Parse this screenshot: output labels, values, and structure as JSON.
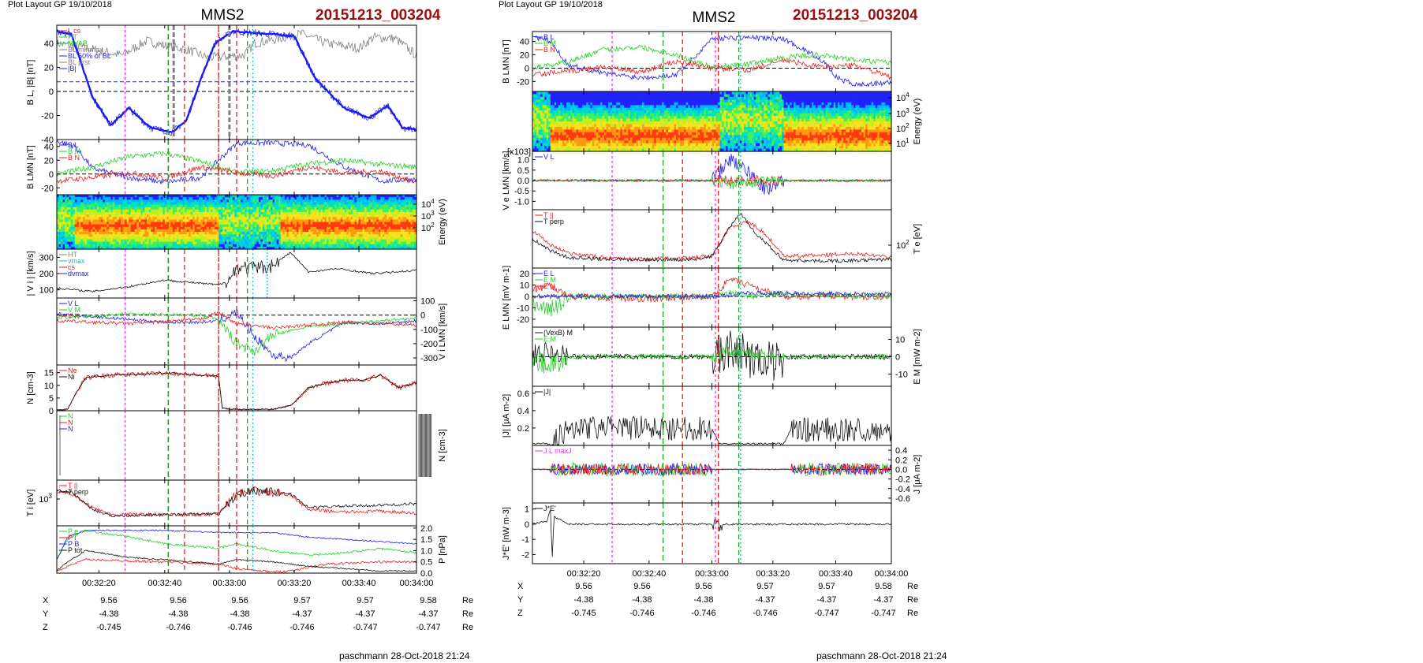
{
  "colors": {
    "blue": "#1d1df0",
    "red": "#ee1c1c",
    "green": "#21d321",
    "black": "#111111",
    "gray": "#808080",
    "magenta": "#ee33ee",
    "dkgreen": "#1aa81a",
    "cyan": "#19b7d8",
    "title_red": "#9b0e0e"
  },
  "left": {
    "header": "Plot Layout GP 19/10/2018",
    "spacecraft": "MMS2",
    "file_id": "20151213_003204",
    "footer": "paschmann 28-Oct-2018 21:24",
    "panels": [
      {
        "id": "bl",
        "ylabel": "B_L, |B| [nT]",
        "ylabel_side": "left",
        "ylim": [
          -40,
          55
        ],
        "ticks": [
          "40",
          "20",
          "0",
          "-20",
          "-40"
        ],
        "legend": [
          {
            "t": "L_cs",
            "c": "red"
          },
          {
            "t": "HT",
            "c": "green"
          },
          {
            "t": "MVAB",
            "c": "green"
          },
          {
            "t": "BL minmax",
            "c": "gray"
          },
          {
            "t": "BL 50% of BL",
            "c": "blue"
          },
          {
            "t": "BL prst",
            "c": "gray"
          },
          {
            "t": "|B|",
            "c": "blue"
          }
        ]
      },
      {
        "id": "blmn",
        "ylabel": "B_LMN [nT]",
        "ylabel_side": "left",
        "ylim": [
          -30,
          50
        ],
        "ticks": [
          "40",
          "20",
          "0",
          "-20"
        ],
        "legend": [
          {
            "t": "B_L",
            "c": "blue"
          },
          {
            "t": "B_M",
            "c": "green"
          },
          {
            "t": "B_N",
            "c": "red"
          }
        ]
      },
      {
        "id": "espec",
        "ylabel": "Energy (eV)",
        "ylabel_side": "right",
        "ticks": [
          "10^4",
          "10^3",
          "10^2"
        ],
        "legend": []
      },
      {
        "id": "vi",
        "ylabel": "| V_i | [km/s]",
        "ylabel_side": "left",
        "ylim": [
          50,
          350
        ],
        "ticks": [
          "300",
          "200",
          "100"
        ],
        "legend": [
          {
            "t": "HT",
            "c": "gray"
          },
          {
            "t": "vmax",
            "c": "cyan"
          },
          {
            "t": "cs",
            "c": "red"
          },
          {
            "t": "dvmax",
            "c": "blue"
          }
        ]
      },
      {
        "id": "vilmn",
        "ylabel": "V_i LMN [km/s]",
        "ylabel_side": "right",
        "ylim": [
          -350,
          120
        ],
        "ticks": [
          "100",
          "0",
          "-100",
          "-200",
          "-300"
        ],
        "legend": [
          {
            "t": "V_L",
            "c": "blue"
          },
          {
            "t": "V_M",
            "c": "green"
          },
          {
            "t": "V_N",
            "c": "red"
          }
        ]
      },
      {
        "id": "n",
        "ylabel": "N [cm^-3]",
        "ylabel_side": "left",
        "ylim": [
          0,
          18
        ],
        "ticks": [
          "15",
          "10",
          "5",
          "0"
        ],
        "legend": [
          {
            "t": "Ne",
            "c": "red"
          },
          {
            "t": "Ni",
            "c": "black"
          }
        ]
      },
      {
        "id": "nmulti",
        "ylabel": "N [cm^-3]",
        "ylabel_side": "right",
        "ticks": [],
        "legend": [
          {
            "t": "N",
            "c": "green"
          },
          {
            "t": "N",
            "c": "red"
          },
          {
            "t": "N",
            "c": "blue"
          }
        ]
      },
      {
        "id": "ti",
        "ylabel": "T_i [eV]",
        "ylabel_side": "left",
        "ticks": [
          "10^3"
        ],
        "legend": [
          {
            "t": "T_||",
            "c": "red"
          },
          {
            "t": "T_perp",
            "c": "black"
          }
        ]
      },
      {
        "id": "p",
        "ylabel": "P [nPa]",
        "ylabel_side": "right",
        "ylim": [
          0,
          2.1
        ],
        "ticks": [
          "2.0",
          "1.5",
          "1.0",
          "0.5",
          "0.0"
        ],
        "legend": [
          {
            "t": "P_e",
            "c": "green"
          },
          {
            "t": "P_i",
            "c": "red"
          },
          {
            "t": "P_B",
            "c": "blue"
          },
          {
            "t": "P_tot",
            "c": "black"
          }
        ]
      }
    ],
    "time_ticks": [
      "00:32:20",
      "00:32:40",
      "00:33:00",
      "00:33:20",
      "00:33:40",
      "00:34:00"
    ],
    "ephemeris": [
      {
        "label": "X",
        "values": [
          "9.56",
          "9.56",
          "9.56",
          "9.57",
          "9.57",
          "9.58"
        ],
        "unit": "Re"
      },
      {
        "label": "Y",
        "values": [
          "-4.38",
          "-4.38",
          "-4.38",
          "-4.37",
          "-4.37",
          "-4.37"
        ],
        "unit": "Re"
      },
      {
        "label": "Z",
        "values": [
          "-0.745",
          "-0.746",
          "-0.746",
          "-0.746",
          "-0.747",
          "-0.747"
        ],
        "unit": "Re"
      }
    ]
  },
  "right": {
    "header": "Plot Layout GP 19/10/2018",
    "spacecraft": "MMS2",
    "file_id": "20151213_003204",
    "footer": "paschmann 28-Oct-2018 21:24",
    "panels": [
      {
        "id": "blmn",
        "ylabel": "B_LMN [nT]",
        "ylabel_side": "left",
        "ylim": [
          -35,
          55
        ],
        "ticks": [
          "40",
          "20",
          "0",
          "-20"
        ],
        "legend": [
          {
            "t": "B_L",
            "c": "blue"
          },
          {
            "t": "B_M",
            "c": "green"
          },
          {
            "t": "B_N",
            "c": "red"
          }
        ]
      },
      {
        "id": "espec",
        "ylabel": "Energy (eV)",
        "ylabel_side": "right",
        "ticks": [
          "10^4",
          "10^3",
          "10^2",
          "10^1"
        ],
        "legend": []
      },
      {
        "id": "ve",
        "ylabel": "V_e LMN [km/s]",
        "ylabel_side": "left",
        "ylim": [
          -1.4,
          1.4
        ],
        "ticks": [
          "1.0",
          "0.5",
          "0.0",
          "-0.5",
          "-1.0"
        ],
        "multiplier": "[x10^3]",
        "legend": [
          {
            "t": "V_L",
            "c": "blue"
          }
        ]
      },
      {
        "id": "te",
        "ylabel": "T_e [eV]",
        "ylabel_side": "right",
        "ticks": [
          "10^2"
        ],
        "legend": [
          {
            "t": "T_||",
            "c": "red"
          },
          {
            "t": "T_perp",
            "c": "black"
          }
        ]
      },
      {
        "id": "e",
        "ylabel": "E_LMN [mV m^-1]",
        "ylabel_side": "left",
        "ylim": [
          -27,
          25
        ],
        "ticks": [
          "20",
          "10",
          "0",
          "-10",
          "-20"
        ],
        "legend": [
          {
            "t": "E_L",
            "c": "blue"
          },
          {
            "t": "E_M",
            "c": "green"
          },
          {
            "t": "E_N",
            "c": "red"
          }
        ]
      },
      {
        "id": "em",
        "ylabel": "E_M [mW m^-2]",
        "ylabel_side": "right",
        "ylim": [
          -17,
          17
        ],
        "ticks": [
          "10",
          "0",
          "-10"
        ],
        "legend": [
          {
            "t": "(VexB)_M",
            "c": "black"
          },
          {
            "t": "E_M",
            "c": "green"
          }
        ]
      },
      {
        "id": "j",
        "ylabel": "|J| [μA m^-2]",
        "ylabel_side": "left",
        "ylim": [
          0,
          0.68
        ],
        "ticks": [
          "0.6",
          "0.4",
          "0.2"
        ],
        "legend": [
          {
            "t": "|J|",
            "c": "black"
          }
        ]
      },
      {
        "id": "jlmn",
        "ylabel": "J [μA m^-2]",
        "ylabel_side": "right",
        "ylim": [
          -0.7,
          0.5
        ],
        "ticks": [
          "0.4",
          "0.2",
          "0.0",
          "-0.2",
          "-0.4",
          "-0.6"
        ],
        "legend": [
          {
            "t": "J_L maxJ",
            "c": "magenta"
          }
        ]
      },
      {
        "id": "je",
        "ylabel": "J*E' [nW m^-3]",
        "ylabel_side": "left",
        "ylim": [
          -2.6,
          1.4
        ],
        "ticks": [
          "1",
          "0",
          "-1",
          "-2"
        ],
        "legend": [
          {
            "t": "J*E'",
            "c": "black"
          }
        ]
      }
    ],
    "time_ticks": [
      "00:32:20",
      "00:32:40",
      "00:33:00",
      "00:33:20",
      "00:33:40",
      "00:34:00"
    ],
    "ephemeris": [
      {
        "label": "X",
        "values": [
          "9.56",
          "9.56",
          "9.56",
          "9.57",
          "9.57",
          "9.58"
        ],
        "unit": "Re"
      },
      {
        "label": "Y",
        "values": [
          "-4.38",
          "-4.38",
          "-4.38",
          "-4.37",
          "-4.37",
          "-4.37"
        ],
        "unit": "Re"
      },
      {
        "label": "Z",
        "values": [
          "-0.745",
          "-0.746",
          "-0.746",
          "-0.746",
          "-0.747",
          "-0.747"
        ],
        "unit": "Re"
      }
    ]
  },
  "chart_data": [
    {
      "type": "line",
      "title": "MMS2 20151213_003204",
      "panel": "left B_L, |B|",
      "x": [
        "00:32:06",
        "00:32:14",
        "00:32:20",
        "00:32:27",
        "00:32:34",
        "00:32:44",
        "00:32:50",
        "00:32:56",
        "00:33:02",
        "00:33:06",
        "00:33:12",
        "00:33:20",
        "00:33:27",
        "00:33:34",
        "00:33:42",
        "00:33:50",
        "00:33:56",
        "00:34:03"
      ],
      "series": [
        {
          "name": "BL prst",
          "values": [
            50,
            42,
            -10,
            -30,
            -20,
            -32,
            -34,
            -24,
            10,
            45,
            49,
            48,
            46,
            40,
            5,
            -15,
            -25,
            -35
          ]
        },
        {
          "name": "|B|",
          "values": [
            50,
            46,
            45,
            40,
            38,
            42,
            40,
            36,
            30,
            44,
            48,
            49,
            48,
            46,
            38,
            40,
            43,
            42
          ]
        }
      ],
      "ylabel": "B_L, |B| [nT]",
      "ylim": [
        -40,
        55
      ]
    },
    {
      "type": "line",
      "panel": "left N",
      "x": [
        "00:32:06",
        "00:32:14",
        "00:32:20",
        "00:32:30",
        "00:32:40",
        "00:32:50",
        "00:33:00",
        "00:33:03",
        "00:33:10",
        "00:33:20",
        "00:33:30",
        "00:33:40",
        "00:33:50",
        "00:34:00",
        "00:34:04"
      ],
      "series": [
        {
          "name": "Ne",
          "values": [
            0.5,
            3,
            14,
            15,
            15,
            13,
            13,
            0.8,
            0.5,
            0.5,
            11,
            12,
            13,
            9,
            11
          ]
        },
        {
          "name": "Ni",
          "values": [
            0.5,
            3,
            14,
            15,
            15,
            13,
            13,
            0.8,
            0.5,
            0.5,
            11,
            12,
            13,
            9,
            11
          ]
        }
      ],
      "ylabel": "N [cm^-3]",
      "ylim": [
        0,
        18
      ]
    },
    {
      "type": "line",
      "panel": "left |V_i|",
      "x": [
        "00:32:06",
        "00:32:20",
        "00:32:30",
        "00:32:40",
        "00:32:50",
        "00:33:00",
        "00:33:05",
        "00:33:15",
        "00:33:22",
        "00:33:30",
        "00:33:45",
        "00:34:04"
      ],
      "series": [
        {
          "name": "|V_i|",
          "values": [
            80,
            100,
            130,
            150,
            130,
            170,
            260,
            250,
            300,
            230,
            210,
            220
          ]
        }
      ],
      "ylabel": "| V_i | [km/s]",
      "ylim": [
        50,
        350
      ]
    },
    {
      "type": "line",
      "panel": "right J*E'",
      "x": [
        "00:32:08",
        "00:32:10",
        "00:32:12",
        "00:32:20",
        "00:33:00",
        "00:33:06",
        "00:33:10",
        "00:34:04"
      ],
      "series": [
        {
          "name": "J*E'",
          "values": [
            0.1,
            1,
            -2.3,
            0,
            0,
            0.6,
            0,
            0
          ]
        }
      ],
      "ylabel": "J*E' [nW m^-3]",
      "ylim": [
        -2.6,
        1.4
      ]
    }
  ]
}
